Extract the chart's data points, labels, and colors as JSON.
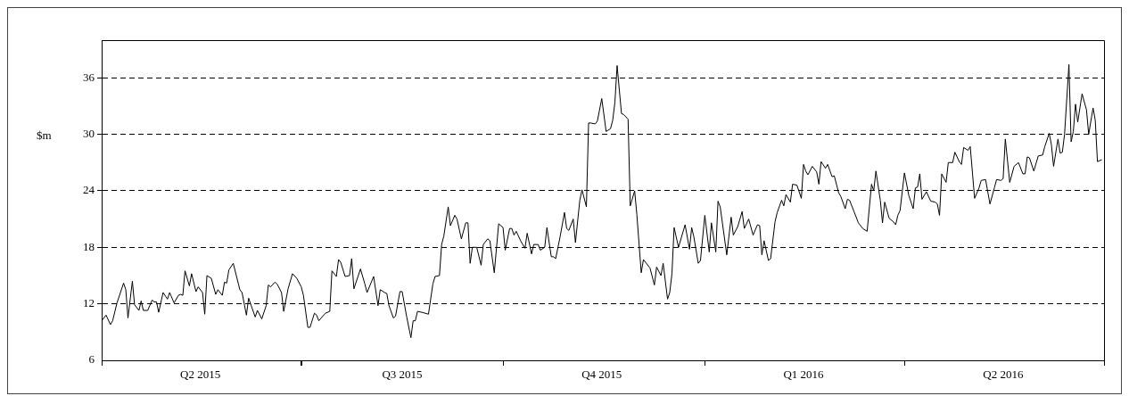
{
  "chart_data": {
    "type": "line",
    "ylabel": "$m",
    "xlim": [
      "2015-04-01",
      "2016-07-01"
    ],
    "xticks": [
      {
        "value": "2015-04-01",
        "label": null
      },
      {
        "value": "2015-05-16",
        "label": "Q2 2015"
      },
      {
        "value": "2015-07-01",
        "label": null
      },
      {
        "value": "2015-08-16",
        "label": "Q3 2015"
      },
      {
        "value": "2015-10-01",
        "label": null
      },
      {
        "value": "2015-11-15",
        "label": "Q4 2015"
      },
      {
        "value": "2016-01-01",
        "label": null
      },
      {
        "value": "2016-02-15",
        "label": "Q1 2016"
      },
      {
        "value": "2016-04-01",
        "label": null
      },
      {
        "value": "2016-05-16",
        "label": "Q2 2016"
      },
      {
        "value": "2016-07-01",
        "label": null
      }
    ],
    "ylim": [
      6,
      40
    ],
    "yticks": [
      6,
      12,
      18,
      24,
      30,
      36
    ],
    "grid": "y",
    "line_style": "solid",
    "marker": "none",
    "series": [
      {
        "color": "#000000",
        "x": [
          "2015-04-01",
          "2015-04-03",
          "2015-04-05",
          "2015-04-06",
          "2015-04-08",
          "2015-04-11",
          "2015-04-12",
          "2015-04-13",
          "2015-04-15",
          "2015-04-16",
          "2015-04-18",
          "2015-04-19",
          "2015-04-20",
          "2015-04-22",
          "2015-04-24",
          "2015-04-25",
          "2015-04-26",
          "2015-04-27",
          "2015-04-29",
          "2015-05-01",
          "2015-05-02",
          "2015-05-04",
          "2015-05-06",
          "2015-05-07",
          "2015-05-08",
          "2015-05-09",
          "2015-05-11",
          "2015-05-12",
          "2015-05-14",
          "2015-05-15",
          "2015-05-17",
          "2015-05-18",
          "2015-05-19",
          "2015-05-21",
          "2015-05-23",
          "2015-05-24",
          "2015-05-26",
          "2015-05-27",
          "2015-05-28",
          "2015-05-29",
          "2015-05-31",
          "2015-06-03",
          "2015-06-04",
          "2015-06-06",
          "2015-06-07",
          "2015-06-10",
          "2015-06-11",
          "2015-06-13",
          "2015-06-15",
          "2015-06-16",
          "2015-06-17",
          "2015-06-19",
          "2015-06-20",
          "2015-06-22",
          "2015-06-23",
          "2015-06-25",
          "2015-06-27",
          "2015-06-29",
          "2015-07-01",
          "2015-07-02",
          "2015-07-04",
          "2015-07-05",
          "2015-07-07",
          "2015-07-08",
          "2015-07-09",
          "2015-07-12",
          "2015-07-14",
          "2015-07-15",
          "2015-07-17",
          "2015-07-18",
          "2015-07-19",
          "2015-07-21",
          "2015-07-23",
          "2015-07-24",
          "2015-07-25",
          "2015-07-27",
          "2015-07-28",
          "2015-07-30",
          "2015-07-31",
          "2015-08-03",
          "2015-08-05",
          "2015-08-06",
          "2015-08-08",
          "2015-08-09",
          "2015-08-10",
          "2015-08-12",
          "2015-08-13",
          "2015-08-15",
          "2015-08-16",
          "2015-08-18",
          "2015-08-20",
          "2015-08-21",
          "2015-08-22",
          "2015-08-23",
          "2015-08-25",
          "2015-08-28",
          "2015-08-30",
          "2015-08-31",
          "2015-09-02",
          "2015-09-03",
          "2015-09-04",
          "2015-09-06",
          "2015-09-07",
          "2015-09-09",
          "2015-09-10",
          "2015-09-12",
          "2015-09-14",
          "2015-09-15",
          "2015-09-16",
          "2015-09-17",
          "2015-09-19",
          "2015-09-21",
          "2015-09-22",
          "2015-09-24",
          "2015-09-25",
          "2015-09-27",
          "2015-09-29",
          "2015-10-01",
          "2015-10-02",
          "2015-10-04",
          "2015-10-05",
          "2015-10-06",
          "2015-10-07",
          "2015-10-09",
          "2015-10-11",
          "2015-10-12",
          "2015-10-14",
          "2015-10-15",
          "2015-10-17",
          "2015-10-18",
          "2015-10-20",
          "2015-10-21",
          "2015-10-23",
          "2015-10-24",
          "2015-10-25",
          "2015-10-27",
          "2015-10-29",
          "2015-10-30",
          "2015-10-31",
          "2015-11-02",
          "2015-11-03",
          "2015-11-05",
          "2015-11-06",
          "2015-11-08",
          "2015-11-09",
          "2015-11-10",
          "2015-11-12",
          "2015-11-13",
          "2015-11-15",
          "2015-11-17",
          "2015-11-19",
          "2015-11-20",
          "2015-11-21",
          "2015-11-22",
          "2015-11-24",
          "2015-11-25",
          "2015-11-27",
          "2015-11-28",
          "2015-11-30",
          "2015-12-01",
          "2015-12-03",
          "2015-12-04",
          "2015-12-07",
          "2015-12-09",
          "2015-12-10",
          "2015-12-12",
          "2015-12-13",
          "2015-12-15",
          "2015-12-16",
          "2015-12-17",
          "2015-12-18",
          "2015-12-20",
          "2015-12-23",
          "2015-12-25",
          "2015-12-26",
          "2015-12-27",
          "2015-12-29",
          "2015-12-30",
          "2016-01-01",
          "2016-01-03",
          "2016-01-04",
          "2016-01-06",
          "2016-01-07",
          "2016-01-08",
          "2016-01-11",
          "2016-01-13",
          "2016-01-14",
          "2016-01-16",
          "2016-01-18",
          "2016-01-19",
          "2016-01-21",
          "2016-01-23",
          "2016-01-25",
          "2016-01-26",
          "2016-01-27",
          "2016-01-28",
          "2016-01-30",
          "2016-01-31",
          "2016-02-02",
          "2016-02-03",
          "2016-02-05",
          "2016-02-06",
          "2016-02-07",
          "2016-02-09",
          "2016-02-10",
          "2016-02-12",
          "2016-02-14",
          "2016-02-15",
          "2016-02-16",
          "2016-02-17",
          "2016-02-19",
          "2016-02-21",
          "2016-02-22",
          "2016-02-23",
          "2016-02-25",
          "2016-02-26",
          "2016-02-28",
          "2016-02-29",
          "2016-03-02",
          "2016-03-03",
          "2016-03-05",
          "2016-03-06",
          "2016-03-07",
          "2016-03-09",
          "2016-03-11",
          "2016-03-13",
          "2016-03-15",
          "2016-03-17",
          "2016-03-18",
          "2016-03-19",
          "2016-03-21",
          "2016-03-22",
          "2016-03-23",
          "2016-03-25",
          "2016-03-27",
          "2016-03-28",
          "2016-03-29",
          "2016-03-30",
          "2016-04-01",
          "2016-04-03",
          "2016-04-05",
          "2016-04-06",
          "2016-04-07",
          "2016-04-08",
          "2016-04-09",
          "2016-04-11",
          "2016-04-13",
          "2016-04-15",
          "2016-04-16",
          "2016-04-17",
          "2016-04-18",
          "2016-04-20",
          "2016-04-21",
          "2016-04-23",
          "2016-04-24",
          "2016-04-26",
          "2016-04-27",
          "2016-04-28",
          "2016-04-30",
          "2016-05-01",
          "2016-05-03",
          "2016-05-05",
          "2016-05-06",
          "2016-05-08",
          "2016-05-10",
          "2016-05-12",
          "2016-05-13",
          "2016-05-15",
          "2016-05-16",
          "2016-05-17",
          "2016-05-19",
          "2016-05-21",
          "2016-05-23",
          "2016-05-25",
          "2016-05-26",
          "2016-05-27",
          "2016-05-28",
          "2016-05-30",
          "2016-06-01",
          "2016-06-03",
          "2016-06-04",
          "2016-06-06",
          "2016-06-07",
          "2016-06-08",
          "2016-06-10",
          "2016-06-11",
          "2016-06-12",
          "2016-06-13",
          "2016-06-15",
          "2016-06-16",
          "2016-06-17",
          "2016-06-18",
          "2016-06-19",
          "2016-06-21",
          "2016-06-23",
          "2016-06-24",
          "2016-06-26",
          "2016-06-27",
          "2016-06-28",
          "2016-06-30"
        ],
        "values": [
          10.2,
          10.8,
          9.8,
          10.2,
          12.1,
          14.2,
          13.5,
          10.5,
          14.4,
          11.9,
          11.3,
          12.3,
          11.3,
          11.3,
          12.4,
          12.2,
          12.2,
          11.1,
          13.2,
          12.5,
          13.2,
          12.1,
          12.9,
          13.0,
          12.9,
          15.5,
          13.9,
          15.2,
          13.3,
          13.8,
          13.2,
          10.9,
          15.0,
          14.7,
          13.0,
          13.5,
          12.9,
          14.3,
          14.2,
          15.6,
          16.3,
          13.5,
          13.2,
          10.8,
          12.6,
          10.6,
          11.3,
          10.4,
          11.8,
          14.0,
          13.8,
          14.3,
          14.1,
          13.2,
          11.2,
          13.6,
          15.2,
          14.7,
          13.8,
          12.9,
          9.5,
          9.5,
          11.0,
          10.8,
          10.2,
          11.0,
          11.2,
          15.5,
          14.9,
          16.7,
          16.4,
          14.9,
          15.0,
          16.8,
          13.6,
          15.0,
          15.7,
          14.1,
          13.2,
          14.9,
          11.8,
          13.5,
          13.2,
          13.1,
          11.8,
          10.5,
          10.7,
          13.3,
          13.3,
          10.7,
          8.4,
          10.2,
          10.2,
          11.2,
          11.1,
          10.9,
          14.1,
          14.9,
          15.0,
          18.3,
          19.2,
          22.3,
          20.3,
          21.4,
          21.0,
          18.9,
          20.6,
          20.6,
          16.3,
          18.0,
          18.0,
          16.1,
          18.3,
          18.9,
          18.7,
          15.3,
          20.5,
          20.1,
          17.7,
          20.0,
          20.0,
          19.3,
          19.7,
          18.7,
          17.9,
          19.5,
          17.3,
          18.3,
          18.3,
          17.7,
          18.0,
          20.1,
          17.0,
          17.0,
          16.8,
          19.1,
          21.7,
          20.0,
          19.8,
          21.0,
          18.5,
          23.0,
          24.1,
          22.3,
          31.2,
          31.2,
          31.1,
          31.4,
          33.8,
          30.3,
          30.6,
          31.5,
          33.4,
          37.3,
          32.2,
          32.1,
          31.6,
          22.4,
          24.0,
          21.5,
          15.3,
          16.7,
          15.8,
          14.0,
          15.9,
          15.0,
          16.3,
          12.5,
          13.2,
          15.2,
          20.1,
          18.0,
          20.4,
          17.8,
          20.1,
          19.1,
          16.3,
          16.6,
          21.4,
          17.5,
          20.6,
          17.5,
          22.9,
          22.3,
          17.2,
          21.2,
          19.3,
          20.2,
          21.8,
          20.0,
          21.0,
          19.3,
          20.4,
          20.3,
          17.2,
          18.7,
          16.6,
          16.8,
          20.7,
          21.7,
          23.0,
          22.4,
          23.6,
          22.8,
          24.7,
          24.6,
          23.2,
          26.8,
          26.1,
          25.7,
          26.6,
          26.0,
          24.7,
          27.1,
          26.4,
          26.8,
          25.5,
          25.6,
          23.8,
          23.4,
          22.1,
          23.1,
          23.0,
          21.8,
          20.6,
          20.0,
          19.7,
          24.7,
          24.0,
          26.1,
          23.0,
          20.6,
          22.8,
          21.1,
          20.7,
          20.4,
          21.4,
          21.9,
          25.9,
          23.5,
          22.1,
          24.3,
          24.4,
          25.8,
          23.1,
          23.9,
          22.9,
          22.8,
          22.6,
          21.4,
          25.8,
          24.9,
          27.0,
          27.0,
          28.1,
          27.1,
          26.8,
          28.6,
          28.3,
          28.7,
          23.2,
          24.3,
          25.1,
          25.2,
          22.6,
          24.3,
          25.2,
          25.1,
          25.3,
          29.5,
          24.9,
          26.6,
          27.0,
          25.8,
          25.8,
          27.6,
          27.5,
          26.1,
          27.7,
          27.8,
          28.7,
          30.1,
          28.9,
          26.6,
          29.5,
          28.0,
          28.1,
          30.0,
          37.4,
          29.2,
          30.3,
          33.2,
          31.3,
          34.3,
          32.6,
          30.0,
          32.8,
          31.5,
          27.1,
          27.3
        ]
      }
    ]
  }
}
